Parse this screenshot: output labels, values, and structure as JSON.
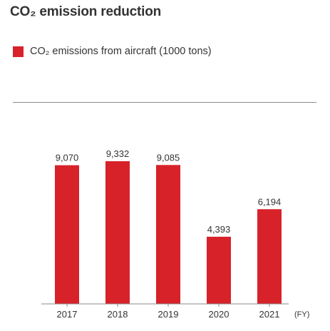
{
  "title": "CO₂ emission reduction",
  "legend_label": "CO₂ emissions from aircraft (1000 tons)",
  "colors": {
    "bar": "#d7222a",
    "text": "#333333",
    "axis": "#8a8a8a"
  },
  "chart_data": {
    "type": "bar",
    "title": "CO₂ emission reduction",
    "categories": [
      "2017",
      "2018",
      "2019",
      "2020",
      "2021"
    ],
    "series": [
      {
        "name": "CO₂ emissions from aircraft (1000 tons)",
        "values": [
          9070,
          9332,
          9085,
          4393,
          6194
        ]
      }
    ],
    "data_labels": [
      "9,070",
      "9,332",
      "9,085",
      "4,393",
      "6,194"
    ],
    "x_unit": "(FY)",
    "ylim": [
      0,
      9332
    ],
    "grid": false,
    "legend_placement": "top-left"
  }
}
